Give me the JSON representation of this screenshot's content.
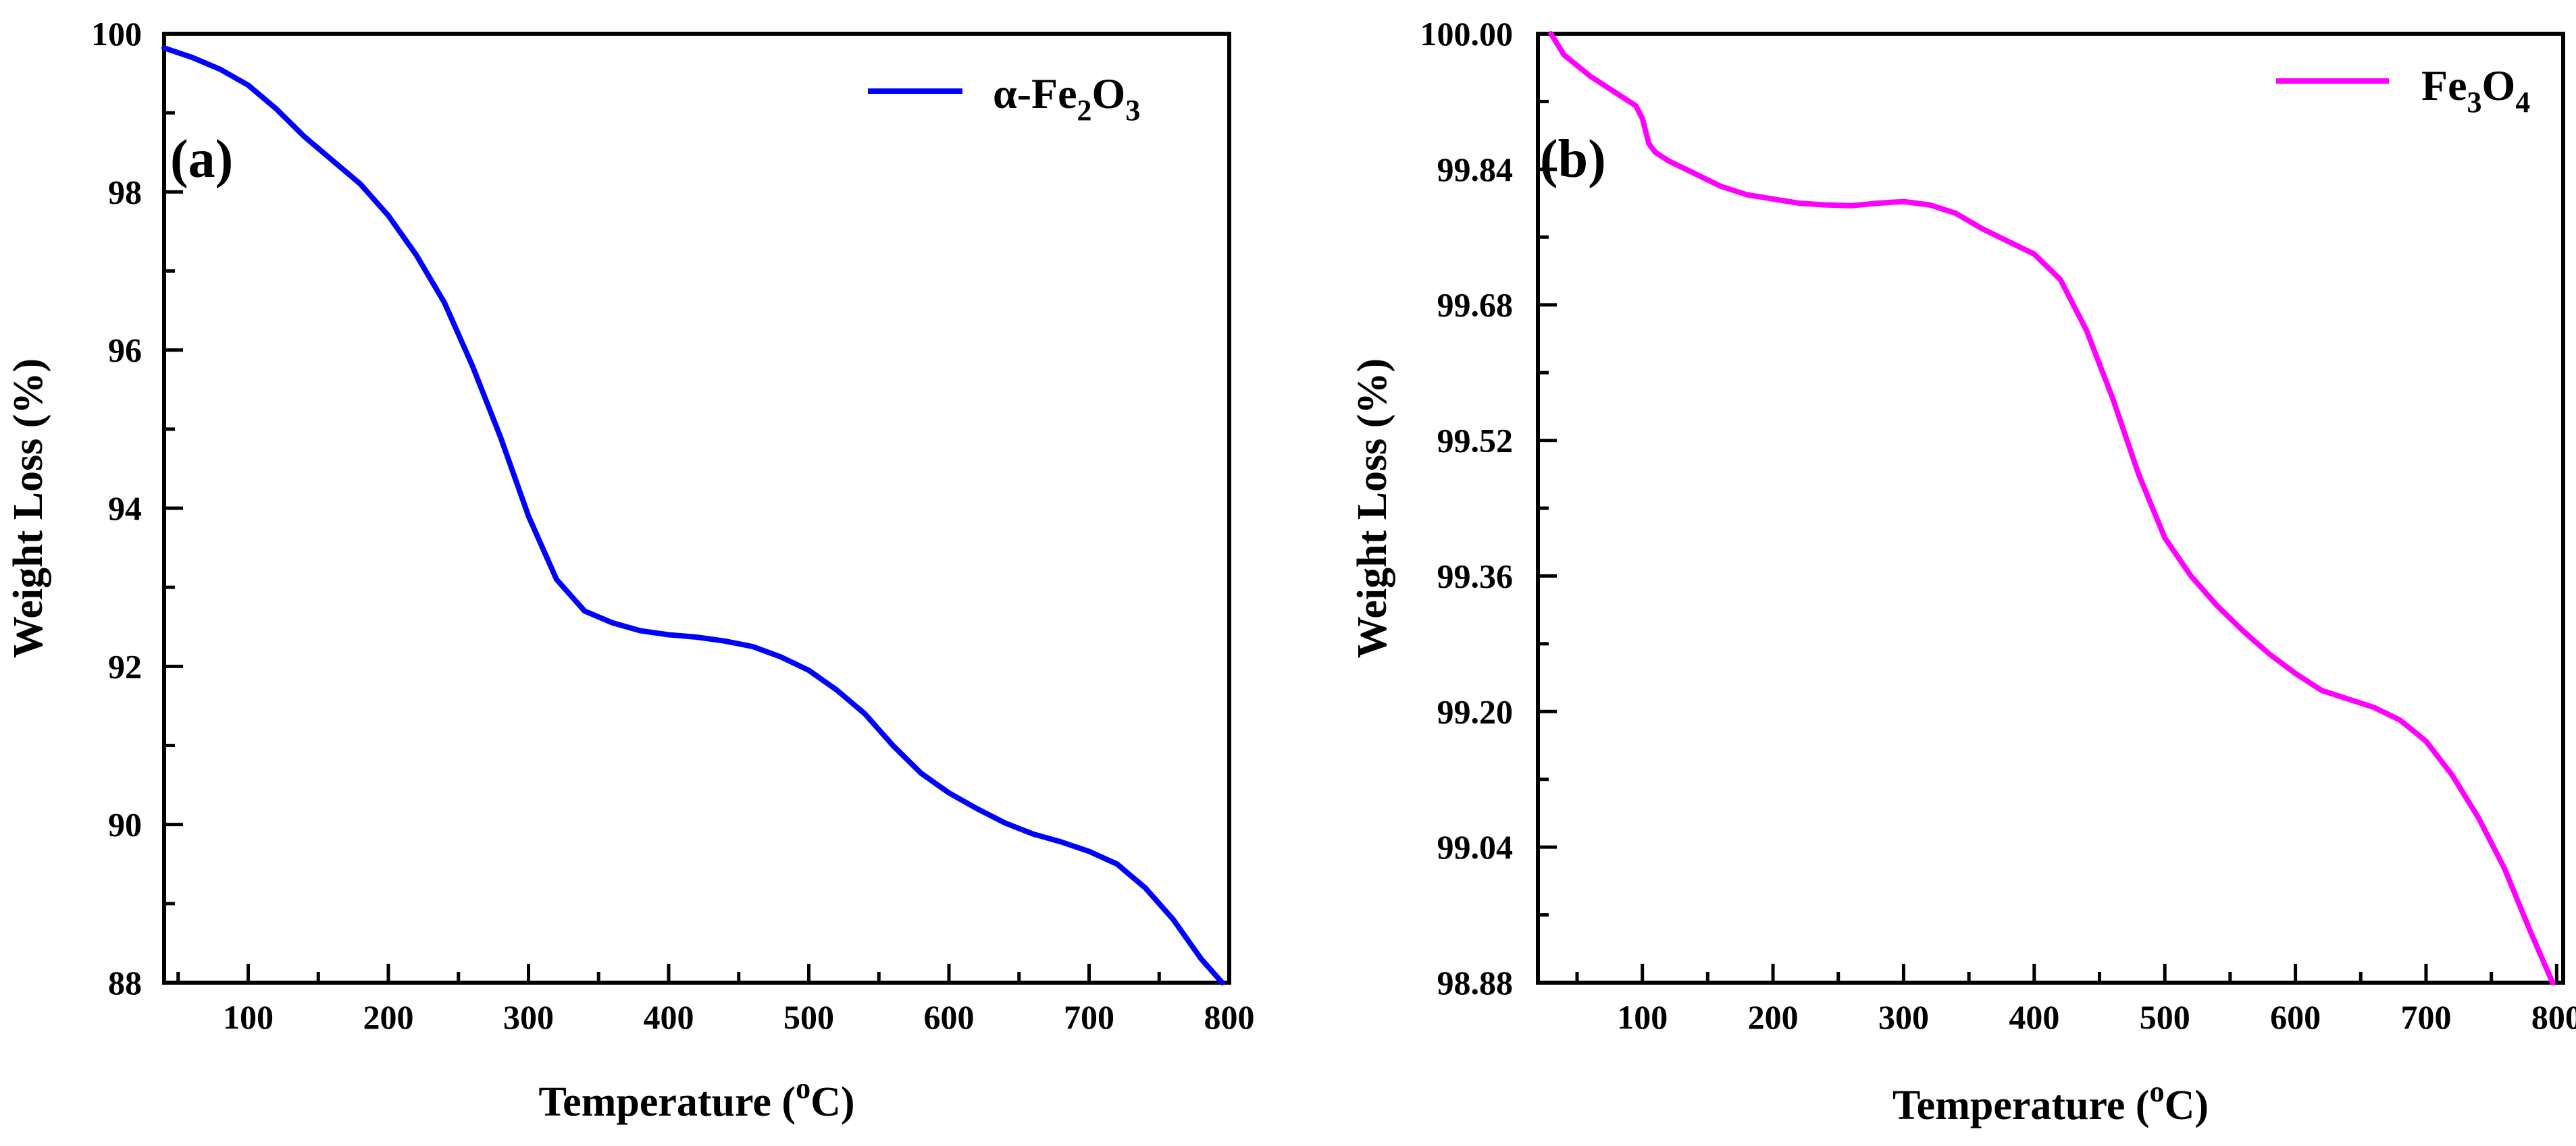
{
  "chart_data": [
    {
      "type": "line",
      "panel_label": "(a)",
      "xlabel": {
        "main": "Temperature (",
        "sup": "o",
        "tail": "C)"
      },
      "ylabel": "Weight Loss (%)",
      "xlim": [
        40,
        800
      ],
      "ylim": [
        88,
        100
      ],
      "x_ticks": [
        100,
        200,
        300,
        400,
        500,
        600,
        700,
        800
      ],
      "y_ticks": [
        88,
        90,
        92,
        94,
        96,
        98,
        100
      ],
      "y_tick_labels": [
        "88",
        "90",
        "92",
        "94",
        "96",
        "98",
        "100"
      ],
      "legend": {
        "parts": [
          [
            "α-Fe",
            ""
          ],
          [
            "2",
            "sub"
          ],
          [
            "O",
            ""
          ],
          [
            "3",
            "sub"
          ]
        ],
        "position": "top-right"
      },
      "series": [
        {
          "name": "α-Fe2O3",
          "color": "#0000ff",
          "x": [
            40,
            60,
            80,
            100,
            120,
            140,
            160,
            180,
            200,
            220,
            240,
            260,
            280,
            300,
            320,
            340,
            360,
            380,
            400,
            420,
            440,
            460,
            480,
            500,
            520,
            540,
            560,
            580,
            600,
            620,
            640,
            660,
            680,
            700,
            720,
            740,
            760,
            780,
            795
          ],
          "y": [
            99.82,
            99.7,
            99.55,
            99.35,
            99.05,
            98.7,
            98.4,
            98.1,
            97.7,
            97.2,
            96.6,
            95.8,
            94.9,
            93.9,
            93.1,
            92.7,
            92.55,
            92.45,
            92.4,
            92.37,
            92.32,
            92.25,
            92.12,
            91.95,
            91.7,
            91.4,
            91.0,
            90.65,
            90.4,
            90.2,
            90.02,
            89.88,
            89.78,
            89.66,
            89.5,
            89.2,
            88.8,
            88.3,
            88.0
          ]
        }
      ]
    },
    {
      "type": "line",
      "panel_label": "(b)",
      "xlabel": {
        "main": "Temperature (",
        "sup": "o",
        "tail": "C)"
      },
      "ylabel": "Weight Loss (%)",
      "xlim": [
        20,
        805
      ],
      "ylim": [
        98.88,
        100.0
      ],
      "x_ticks": [
        100,
        200,
        300,
        400,
        500,
        600,
        700,
        800
      ],
      "y_ticks": [
        98.88,
        99.04,
        99.2,
        99.36,
        99.52,
        99.68,
        99.84,
        100.0
      ],
      "y_tick_labels": [
        "98.88",
        "99.04",
        "99.20",
        "99.36",
        "99.52",
        "99.68",
        "99.84",
        "100.00"
      ],
      "legend": {
        "parts": [
          [
            "Fe",
            ""
          ],
          [
            "3",
            "sub"
          ],
          [
            "O",
            ""
          ],
          [
            "4",
            "sub"
          ]
        ],
        "position": "top-right"
      },
      "series": [
        {
          "name": "Fe3O4",
          "color": "#ff00ff",
          "x": [
            30,
            40,
            60,
            80,
            95,
            100,
            105,
            110,
            120,
            140,
            160,
            180,
            200,
            220,
            240,
            260,
            280,
            300,
            320,
            340,
            360,
            380,
            400,
            420,
            440,
            460,
            480,
            500,
            520,
            540,
            560,
            580,
            600,
            620,
            640,
            660,
            680,
            700,
            720,
            740,
            760,
            780,
            797
          ],
          "y": [
            100.0,
            99.975,
            99.95,
            99.93,
            99.915,
            99.9,
            99.87,
            99.86,
            99.85,
            99.835,
            99.82,
            99.81,
            99.805,
            99.8,
            99.798,
            99.797,
            99.8,
            99.802,
            99.798,
            99.788,
            99.77,
            99.755,
            99.74,
            99.71,
            99.65,
            99.57,
            99.48,
            99.405,
            99.36,
            99.325,
            99.295,
            99.268,
            99.245,
            99.225,
            99.215,
            99.205,
            99.19,
            99.165,
            99.125,
            99.075,
            99.015,
            98.94,
            98.88
          ]
        }
      ]
    }
  ]
}
